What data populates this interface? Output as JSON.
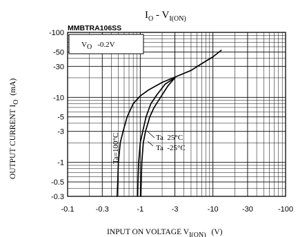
{
  "chart_data": {
    "type": "line",
    "title": {
      "main": "I",
      "sub1": "O",
      "sep": " - ",
      "main2": "V",
      "sub2": "I(ON)"
    },
    "part_number": "MMBTRA106SS",
    "condition": {
      "main": "V",
      "sub": "O",
      "value": "-0.2V"
    },
    "xlabel": {
      "text": "INPUT ON VOLTAGE V",
      "sub": "I(ON)",
      "unit": "(V)"
    },
    "ylabel": {
      "text": "OUTPUT CURRENT I",
      "sub": "O",
      "unit": "(mA)"
    },
    "x_scale": "log",
    "y_scale": "log",
    "xlim": [
      -0.1,
      -100
    ],
    "ylim": [
      -0.3,
      -100
    ],
    "x_ticks": [
      {
        "v": 0.1,
        "label": "-0.1"
      },
      {
        "v": 0.3,
        "label": "-0.3"
      },
      {
        "v": 1,
        "label": "-1"
      },
      {
        "v": 3,
        "label": "-3"
      },
      {
        "v": 10,
        "label": "-10"
      },
      {
        "v": 30,
        "label": "-30"
      },
      {
        "v": 100,
        "label": "-100"
      }
    ],
    "y_ticks": [
      {
        "v": 100,
        "label": "-100"
      },
      {
        "v": 50,
        "label": "-50"
      },
      {
        "v": 30,
        "label": "-30"
      },
      {
        "v": 10,
        "label": "-10"
      },
      {
        "v": 5,
        "label": "-5"
      },
      {
        "v": 3,
        "label": "-3"
      },
      {
        "v": 1,
        "label": "-1"
      },
      {
        "v": 0.5,
        "label": "-0.5"
      },
      {
        "v": 0.3,
        "label": "-0.3"
      }
    ],
    "grid": true,
    "series": [
      {
        "name": "Ta=100°C",
        "points": [
          [
            0.48,
            0.3
          ],
          [
            0.49,
            0.5
          ],
          [
            0.5,
            1
          ],
          [
            0.53,
            2
          ],
          [
            0.58,
            3
          ],
          [
            0.66,
            5
          ],
          [
            0.8,
            8
          ],
          [
            1.0,
            10.5
          ],
          [
            1.3,
            13
          ],
          [
            2,
            17
          ],
          [
            3,
            20.5
          ],
          [
            5,
            26
          ],
          [
            7,
            33
          ],
          [
            10,
            42
          ],
          [
            13,
            53
          ]
        ]
      },
      {
        "name": "Ta=25°C",
        "points": [
          [
            0.92,
            0.3
          ],
          [
            0.93,
            0.5
          ],
          [
            0.95,
            1
          ],
          [
            1.0,
            2
          ],
          [
            1.08,
            3
          ],
          [
            1.2,
            5
          ],
          [
            1.4,
            8
          ],
          [
            1.7,
            11
          ],
          [
            2.2,
            16
          ],
          [
            3,
            20
          ]
        ]
      },
      {
        "name": "Ta=-25°C",
        "points": [
          [
            1.02,
            0.3
          ],
          [
            1.03,
            0.5
          ],
          [
            1.05,
            1
          ],
          [
            1.1,
            2
          ],
          [
            1.18,
            3
          ],
          [
            1.35,
            5
          ],
          [
            1.55,
            7
          ],
          [
            1.9,
            10
          ],
          [
            2.4,
            15
          ],
          [
            3,
            20
          ]
        ]
      }
    ],
    "annotations": [
      {
        "text": "Ta=100°C",
        "target": "Ta=100°C"
      },
      {
        "text": "Ta  25°C",
        "target": "Ta=25°C"
      },
      {
        "text": "Ta  -25°C",
        "target": "Ta=-25°C"
      }
    ],
    "colors": {
      "line": "#000000",
      "grid": "#000000",
      "background": "#ffffff"
    }
  }
}
